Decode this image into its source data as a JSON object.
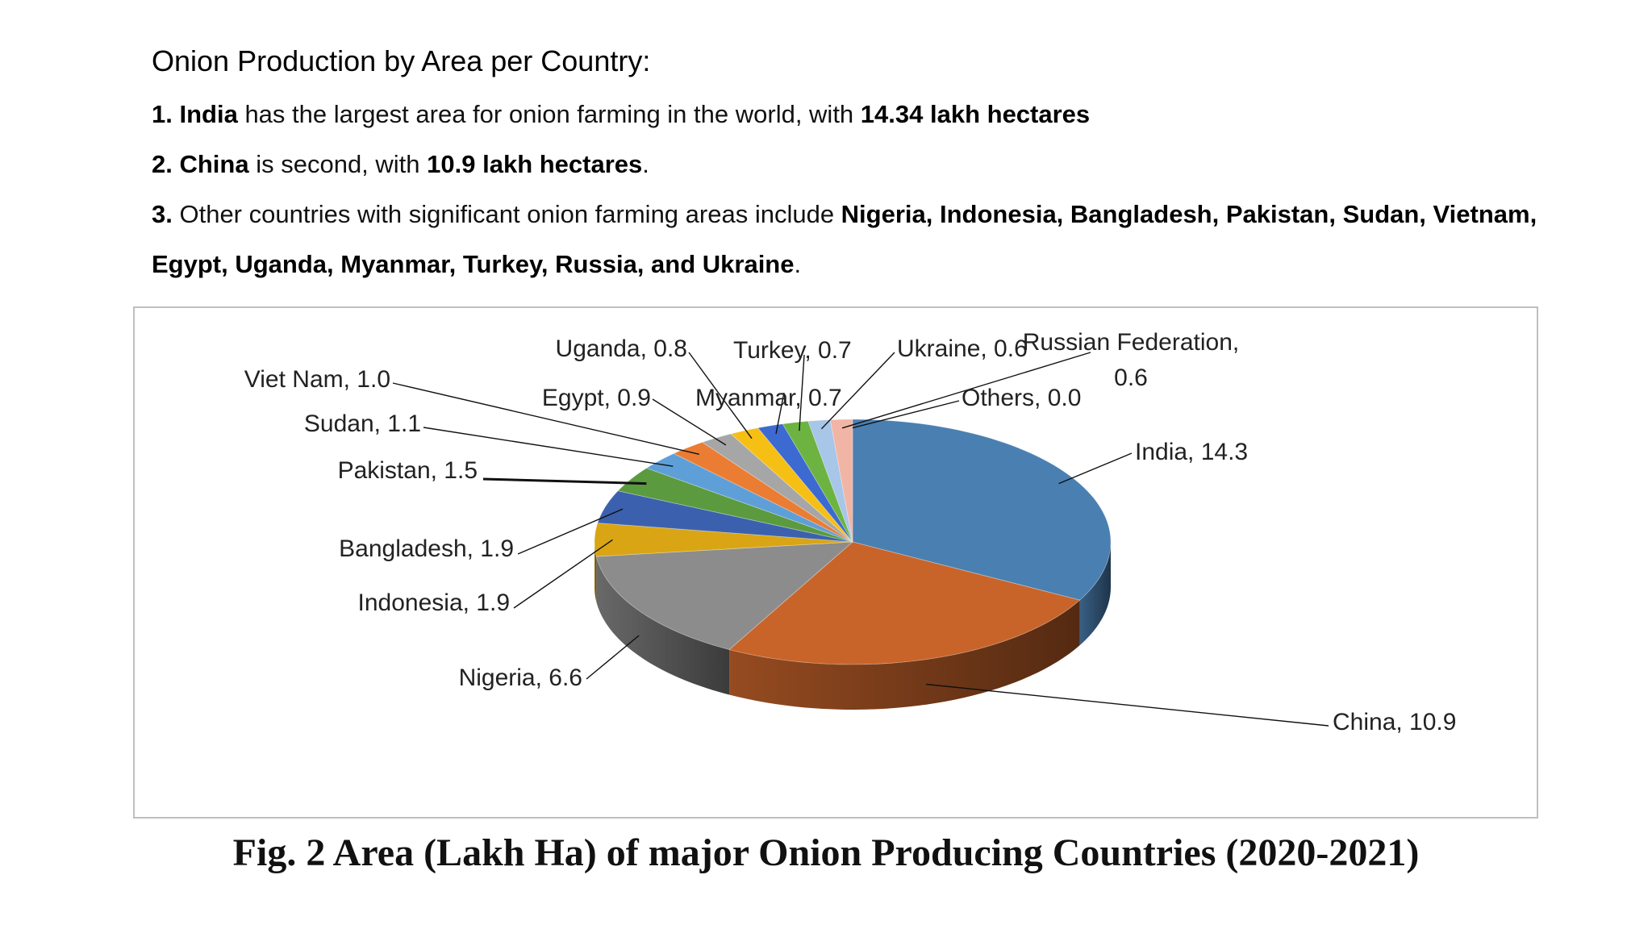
{
  "heading": "Onion Production by Area per Country:",
  "points": [
    {
      "num": "1.",
      "bold": "India",
      "text": " has the largest area for onion farming in the world, with ",
      "bold2": "14.34 lakh hectares",
      "tail": ""
    },
    {
      "num": "2.",
      "bold": "China",
      "text": " is second, with ",
      "bold2": "10.9 lakh hectares",
      "tail": "."
    },
    {
      "num": "3.",
      "text": " Other countries with significant onion farming areas include ",
      "bold2": "Nigeria, Indonesia, Bangladesh, Pakistan, Sudan, Vietnam,"
    }
  ],
  "point3_line2": {
    "bold": "Egypt, Uganda, Myanmar, Turkey, Russia, and Ukraine",
    "tail": "."
  },
  "caption": "Fig. 2 Area (Lakh Ha) of major Onion Producing Countries (2020-2021)",
  "chart_data": {
    "type": "pie",
    "style": "3d",
    "unit": "Lakh Ha",
    "slices": [
      {
        "label": "India",
        "value": 14.3,
        "label_text": "India, 14.3",
        "color": "#4a7fb1"
      },
      {
        "label": "China",
        "value": 10.9,
        "label_text": "China, 10.9",
        "color": "#c8642a"
      },
      {
        "label": "Nigeria",
        "value": 6.6,
        "label_text": "Nigeria, 6.6",
        "color": "#8c8c8c"
      },
      {
        "label": "Indonesia",
        "value": 1.9,
        "label_text": "Indonesia, 1.9",
        "color": "#d9a514"
      },
      {
        "label": "Bangladesh",
        "value": 1.9,
        "label_text": "Bangladesh, 1.9",
        "color": "#3b61ae"
      },
      {
        "label": "Pakistan",
        "value": 1.5,
        "label_text": "Pakistan, 1.5",
        "color": "#5b9a3f"
      },
      {
        "label": "Sudan",
        "value": 1.1,
        "label_text": "Sudan, 1.1",
        "color": "#5f9fd8"
      },
      {
        "label": "Viet Nam",
        "value": 1.0,
        "label_text": "Viet Nam, 1.0",
        "color": "#ea7d33"
      },
      {
        "label": "Egypt",
        "value": 0.9,
        "label_text": "Egypt, 0.9",
        "color": "#a6a6a6"
      },
      {
        "label": "Uganda",
        "value": 0.8,
        "label_text": "Uganda, 0.8",
        "color": "#f5bf14"
      },
      {
        "label": "Myanmar",
        "value": 0.7,
        "label_text": "Myanmar, 0.7",
        "color": "#3c6ad0"
      },
      {
        "label": "Turkey",
        "value": 0.7,
        "label_text": "Turkey, 0.7",
        "color": "#6db342"
      },
      {
        "label": "Ukraine",
        "value": 0.6,
        "label_text": "Ukraine, 0.6",
        "color": "#a7c6e8"
      },
      {
        "label": "Russian Federation",
        "value": 0.6,
        "label_text": "Russian Federation, 0.6",
        "color": "#f1b5a5"
      },
      {
        "label": "Others",
        "value": 0.0,
        "label_text": "Others, 0.0",
        "color": "#d0d0d0"
      }
    ]
  }
}
